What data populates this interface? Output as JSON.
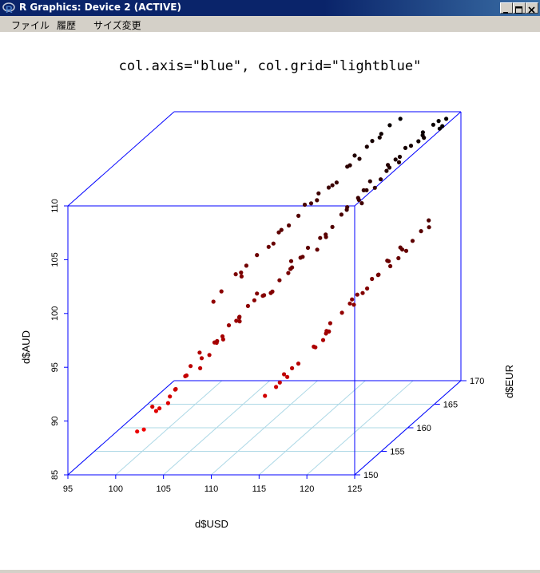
{
  "window": {
    "title": "R Graphics: Device 2 (ACTIVE)"
  },
  "menu": {
    "items": [
      "ファイル",
      "履歴",
      "サイズ変更"
    ]
  },
  "colors": {
    "axis": "#0000ff",
    "grid": "#add8e6",
    "point_low": "#ff0000",
    "point_high": "#000000"
  },
  "chart_data": {
    "type": "scatter",
    "title": "col.axis=\"blue\", col.grid=\"lightblue\"",
    "xlabel": "d$USD",
    "ylabel": "d$AUD",
    "zlabel": "d$EUR",
    "xlim": [
      95,
      125
    ],
    "ylim": [
      85,
      110
    ],
    "zlim": [
      150,
      170
    ],
    "x_ticks": [
      "95",
      "100",
      "105",
      "110",
      "115",
      "120",
      "125"
    ],
    "y_ticks": [
      "85",
      "90",
      "95",
      "100",
      "105",
      "110"
    ],
    "z_ticks": [
      "150",
      "155",
      "160",
      "165",
      "170"
    ],
    "grid": true,
    "color_by": "y (low = red, high = black)",
    "points": [
      [
        99.5,
        86.5,
        156.2
      ],
      [
        100.5,
        88.0,
        156.7
      ],
      [
        101.5,
        89.0,
        157.5
      ],
      [
        100.8,
        88.2,
        156.8
      ],
      [
        99.8,
        87.1,
        154.4
      ],
      [
        101.0,
        89.1,
        155.1
      ],
      [
        102.0,
        89.6,
        157.6
      ],
      [
        103.0,
        90.8,
        157.7
      ],
      [
        102.5,
        90.0,
        156.8
      ],
      [
        104.0,
        91.1,
        158.7
      ],
      [
        104.5,
        92.3,
        158.1
      ],
      [
        105.0,
        92.9,
        160.0
      ],
      [
        104.0,
        92.6,
        158.6
      ],
      [
        105.5,
        93.5,
        158.7
      ],
      [
        106.5,
        94.7,
        159.6
      ],
      [
        106.0,
        93.8,
        159.3
      ],
      [
        107.0,
        94.9,
        160.1
      ],
      [
        108.0,
        96.1,
        160.5
      ],
      [
        107.5,
        95.4,
        159.8
      ],
      [
        108.5,
        96.5,
        160.8
      ],
      [
        106.5,
        94.2,
        157.4
      ],
      [
        108.2,
        95.9,
        158.5
      ],
      [
        110.0,
        97.0,
        161.5
      ],
      [
        109.0,
        97.3,
        160.4
      ],
      [
        109.5,
        97.0,
        160.6
      ],
      [
        110.5,
        97.4,
        160.3
      ],
      [
        111.5,
        98.8,
        162.2
      ],
      [
        110.8,
        98.1,
        161.4
      ],
      [
        112.0,
        99.2,
        161.6
      ],
      [
        113.0,
        100.1,
        161.8
      ],
      [
        112.5,
        99.8,
        162.3
      ],
      [
        114.0,
        101.2,
        163.3
      ],
      [
        113.5,
        100.9,
        161.9
      ],
      [
        114.5,
        101.2,
        163.5
      ],
      [
        115.0,
        102.0,
        163.8
      ],
      [
        116.0,
        103.4,
        164.8
      ],
      [
        115.5,
        102.8,
        164.6
      ],
      [
        116.5,
        103.6,
        163.8
      ],
      [
        117.0,
        103.9,
        165.2
      ],
      [
        117.5,
        104.8,
        165.2
      ],
      [
        118.0,
        105.5,
        165.5
      ],
      [
        118.5,
        104.9,
        165.5
      ],
      [
        119.0,
        105.6,
        165.7
      ],
      [
        118.3,
        105.2,
        164.3
      ],
      [
        119.5,
        106.3,
        165.9
      ],
      [
        120.0,
        107.0,
        166.7
      ],
      [
        119.8,
        106.6,
        165.9
      ],
      [
        120.5,
        107.3,
        166.6
      ],
      [
        121.0,
        107.8,
        167.8
      ],
      [
        121.5,
        108.0,
        168.3
      ],
      [
        120.3,
        106.7,
        166.8
      ],
      [
        122.0,
        108.6,
        168.2
      ],
      [
        121.8,
        108.7,
        168.6
      ],
      [
        122.5,
        109.1,
        169.3
      ],
      [
        123.0,
        109.4,
        169.4
      ],
      [
        103.5,
        91.7,
        157.8
      ],
      [
        105.8,
        93.3,
        159.8
      ],
      [
        107.8,
        95.2,
        159.3
      ],
      [
        111.0,
        98.2,
        162.7
      ],
      [
        113.8,
        100.2,
        163.1
      ],
      [
        116.8,
        104.0,
        165.4
      ],
      [
        119.2,
        106.5,
        166.7
      ],
      [
        122.3,
        108.5,
        167.9
      ],
      [
        124.0,
        109.4,
        168.3
      ],
      [
        123.5,
        109.0,
        168.7
      ],
      [
        101.2,
        88.3,
        157.7
      ],
      [
        102.8,
        90.6,
        158.3
      ],
      [
        104.8,
        92.2,
        159.0
      ],
      [
        106.8,
        94.8,
        161.0
      ],
      [
        109.3,
        96.8,
        161.2
      ],
      [
        111.8,
        99.7,
        161.8
      ],
      [
        114.3,
        101.3,
        163.8
      ],
      [
        117.3,
        103.6,
        165.2
      ],
      [
        120.8,
        107.9,
        167.1
      ],
      [
        123.8,
        109.6,
        169.4
      ],
      [
        112.0,
        89.5,
        156.5
      ],
      [
        113.5,
        90.6,
        158.0
      ],
      [
        115.0,
        92.1,
        157.4
      ],
      [
        114.0,
        91.5,
        156.5
      ],
      [
        116.0,
        93.0,
        158.8
      ],
      [
        117.0,
        94.2,
        159.0
      ],
      [
        116.5,
        94.0,
        160.0
      ],
      [
        118.0,
        95.6,
        160.2
      ],
      [
        117.5,
        95.2,
        158.9
      ],
      [
        119.0,
        96.8,
        160.3
      ],
      [
        118.5,
        96.2,
        160.8
      ],
      [
        120.0,
        97.3,
        160.5
      ],
      [
        119.5,
        97.2,
        160.4
      ],
      [
        121.0,
        98.5,
        161.6
      ],
      [
        120.5,
        98.1,
        162.6
      ],
      [
        122.0,
        99.1,
        162.1
      ],
      [
        121.5,
        99.3,
        162.7
      ],
      [
        123.0,
        100.0,
        163.3
      ],
      [
        122.5,
        100.4,
        163.1
      ],
      [
        124.0,
        101.4,
        164.3
      ],
      [
        123.5,
        100.8,
        163.6
      ],
      [
        124.5,
        101.5,
        164.9
      ],
      [
        115.5,
        92.8,
        159.4
      ],
      [
        118.8,
        96.0,
        161.0
      ],
      [
        121.8,
        99.7,
        161.9
      ],
      [
        113.0,
        90.3,
        157.5
      ],
      [
        116.2,
        93.2,
        159.9
      ],
      [
        119.8,
        97.2,
        161.7
      ],
      [
        122.8,
        99.8,
        162.2
      ],
      [
        124.8,
        102.4,
        164.3
      ],
      [
        112.5,
        89.8,
        157.7
      ],
      [
        114.5,
        91.8,
        157.1
      ],
      [
        117.2,
        94.3,
        159.2
      ],
      [
        120.2,
        98.0,
        161.9
      ],
      [
        123.2,
        100.6,
        162.2
      ],
      [
        104.0,
        96.5,
        162.7
      ],
      [
        105.0,
        97.7,
        163.6
      ],
      [
        106.0,
        98.2,
        162.8
      ],
      [
        107.0,
        99.3,
        164.0
      ],
      [
        108.0,
        99.8,
        165.3
      ],
      [
        109.0,
        101.2,
        165.0
      ],
      [
        108.5,
        100.8,
        165.4
      ],
      [
        110.0,
        101.9,
        166.4
      ],
      [
        111.0,
        102.8,
        167.0
      ],
      [
        110.5,
        102.8,
        166.7
      ],
      [
        112.0,
        103.9,
        166.6
      ],
      [
        113.0,
        104.3,
        167.4
      ],
      [
        112.5,
        104.0,
        167.6
      ],
      [
        114.0,
        105.6,
        168.4
      ],
      [
        115.0,
        106.8,
        168.0
      ],
      [
        114.5,
        105.9,
        168.0
      ],
      [
        116.0,
        107.4,
        168.5
      ],
      [
        117.0,
        108.0,
        169.1
      ],
      [
        116.5,
        107.9,
        168.6
      ],
      [
        118.0,
        109.1,
        169.2
      ],
      [
        106.5,
        98.8,
        162.9
      ],
      [
        109.5,
        101.4,
        165.5
      ],
      [
        111.5,
        103.0,
        167.2
      ],
      [
        113.5,
        104.6,
        167.3
      ],
      [
        115.5,
        106.5,
        168.0
      ],
      [
        117.5,
        108.6,
        168.5
      ],
      [
        105.5,
        97.4,
        163.8
      ],
      [
        107.5,
        99.5,
        165.3
      ],
      [
        103.5,
        95.8,
        162.1
      ],
      [
        119.0,
        109.6,
        169.4
      ]
    ]
  }
}
